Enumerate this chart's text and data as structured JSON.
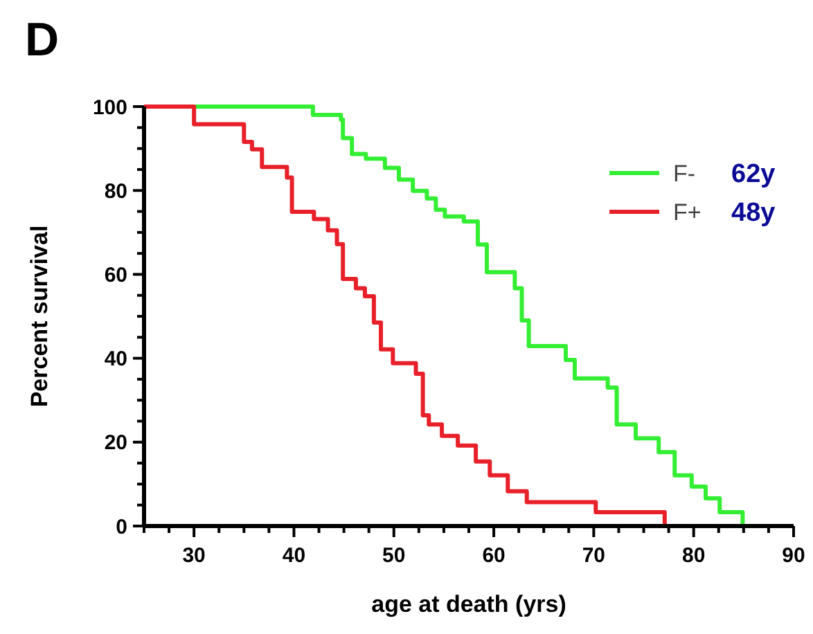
{
  "chart_data": {
    "type": "step",
    "title": "D",
    "xlabel": "age at death (yrs)",
    "ylabel": "Percent survival",
    "xlim": [
      25,
      90
    ],
    "xticks": [
      {
        "value": 25,
        "label": null
      },
      {
        "value": 27.5,
        "label": null
      },
      30,
      {
        "value": 32.5,
        "label": null
      },
      {
        "value": 35,
        "label": null
      },
      {
        "value": 37.5,
        "label": null
      },
      40,
      {
        "value": 42.5,
        "label": null
      },
      {
        "value": 45,
        "label": null
      },
      {
        "value": 47.5,
        "label": null
      },
      50,
      {
        "value": 52.5,
        "label": null
      },
      {
        "value": 55,
        "label": null
      },
      {
        "value": 57.5,
        "label": null
      },
      60,
      {
        "value": 62.5,
        "label": null
      },
      {
        "value": 65,
        "label": null
      },
      {
        "value": 67.5,
        "label": null
      },
      70,
      {
        "value": 72.5,
        "label": null
      },
      {
        "value": 75,
        "label": null
      },
      {
        "value": 77.5,
        "label": null
      },
      80,
      {
        "value": 82.5,
        "label": null
      },
      {
        "value": 85,
        "label": null
      },
      {
        "value": 87.5,
        "label": null
      },
      90
    ],
    "ylim": [
      0,
      100
    ],
    "yticks": [
      0,
      {
        "value": 5,
        "label": null
      },
      {
        "value": 10,
        "label": null
      },
      {
        "value": 15,
        "label": null
      },
      20,
      {
        "value": 25,
        "label": null
      },
      {
        "value": 30,
        "label": null
      },
      {
        "value": 35,
        "label": null
      },
      40,
      {
        "value": 45,
        "label": null
      },
      {
        "value": 50,
        "label": null
      },
      {
        "value": 55,
        "label": null
      },
      60,
      {
        "value": 65,
        "label": null
      },
      {
        "value": 70,
        "label": null
      },
      {
        "value": 75,
        "label": null
      },
      80,
      {
        "value": 85,
        "label": null
      },
      {
        "value": 90,
        "label": null
      },
      {
        "value": 95,
        "label": null
      },
      100
    ],
    "grid": false,
    "legend": "top right",
    "marker": "none",
    "line_style": "solid",
    "annotations": [
      "62y",
      "48y"
    ],
    "series": [
      {
        "name": "F-",
        "color": "#33ee33",
        "x": [
          30,
          41.9,
          44.7,
          44.9,
          45.8,
          47.2,
          49.1,
          50.5,
          51.9,
          53.3,
          54.2,
          55.1,
          57,
          58.4,
          59.3,
          62.1,
          62.8,
          63.5,
          67.2,
          68.1,
          71.4,
          72.3,
          74.2,
          76.5,
          78.1,
          79.8,
          81.2,
          82.6,
          84.9
        ],
        "values": [
          100,
          98,
          96.9,
          92.5,
          88.7,
          87.6,
          85.4,
          82.6,
          79.9,
          78.1,
          75.4,
          73.8,
          72.6,
          67.1,
          60.5,
          56.7,
          49,
          42.9,
          39.6,
          35.2,
          33,
          24.2,
          20.9,
          17.6,
          12.1,
          9.4,
          6.6,
          3.3,
          0
        ]
      },
      {
        "name": "F+",
        "color": "#e8202a",
        "x": [
          25,
          30,
          35,
          35.8,
          36.8,
          39.3,
          39.8,
          42,
          43.4,
          44.3,
          44.9,
          46.2,
          47.1,
          48,
          48.7,
          49.9,
          52.2,
          52.9,
          53.5,
          54.8,
          56.4,
          58.2,
          59.6,
          61.4,
          63.3,
          70.2,
          77.1
        ],
        "values": [
          100,
          95.8,
          91.6,
          89.8,
          85.6,
          83.1,
          74.9,
          73.2,
          70.5,
          67.2,
          58.9,
          56.7,
          54.8,
          48.5,
          42.1,
          38.8,
          36.3,
          26.4,
          24.2,
          21.5,
          19.2,
          15.4,
          12.1,
          8.3,
          5.7,
          3.3,
          0
        ]
      }
    ]
  }
}
